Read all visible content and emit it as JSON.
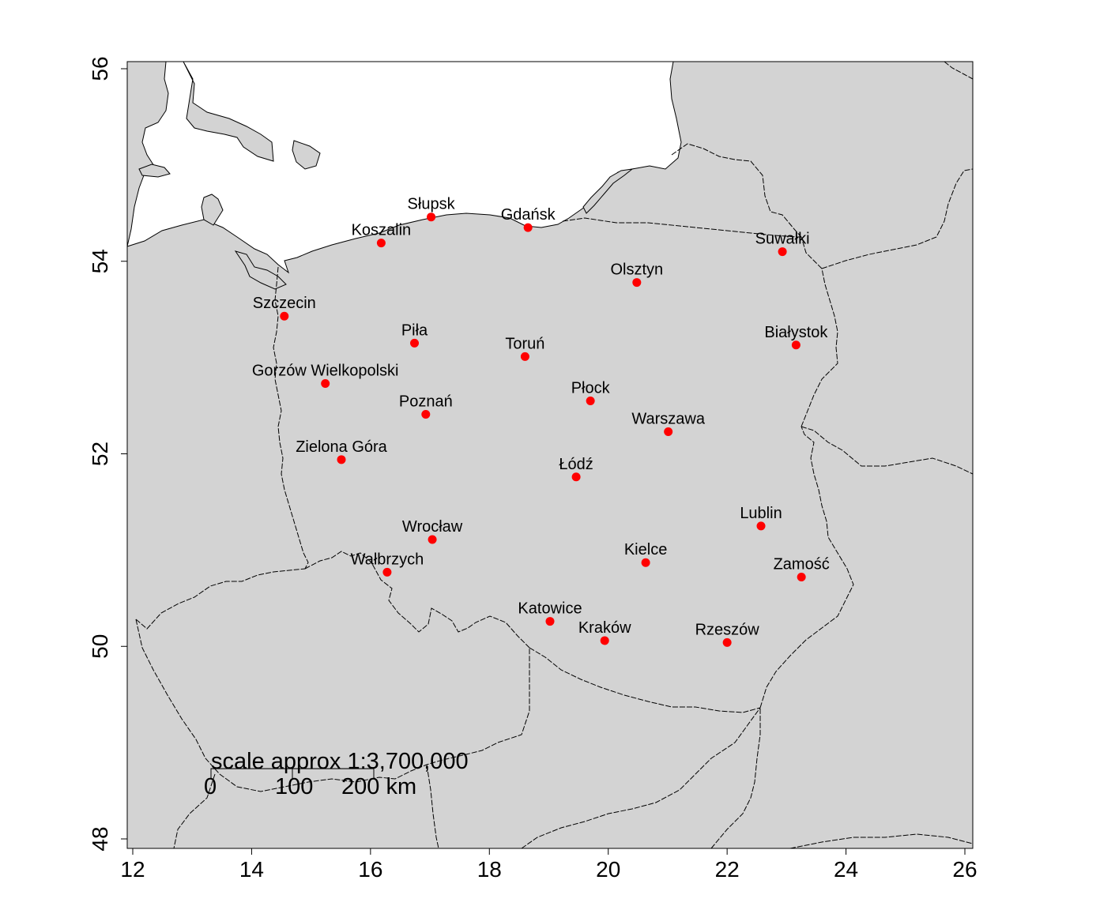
{
  "map": {
    "type": "map",
    "x_axis": {
      "range": [
        12,
        26
      ],
      "ticks": [
        "12",
        "14",
        "16",
        "18",
        "20",
        "22",
        "24",
        "26"
      ],
      "tick_values": [
        12,
        14,
        16,
        18,
        20,
        22,
        24,
        26
      ]
    },
    "y_axis": {
      "range": [
        48,
        56
      ],
      "ticks": [
        "48",
        "50",
        "52",
        "54",
        "56"
      ],
      "tick_values": [
        48,
        50,
        52,
        54,
        56
      ]
    },
    "land_color": "#d3d3d3",
    "sea_color": "#ffffff",
    "point_color": "#ff0000",
    "cities": [
      {
        "name": "Słupsk",
        "lon": 17.02,
        "lat": 54.46
      },
      {
        "name": "Gdańsk",
        "lon": 18.65,
        "lat": 54.35
      },
      {
        "name": "Koszalin",
        "lon": 16.18,
        "lat": 54.19
      },
      {
        "name": "Suwałki",
        "lon": 22.93,
        "lat": 54.1
      },
      {
        "name": "Olsztyn",
        "lon": 20.48,
        "lat": 53.78
      },
      {
        "name": "Szczecin",
        "lon": 14.55,
        "lat": 53.43
      },
      {
        "name": "Piła",
        "lon": 16.74,
        "lat": 53.15
      },
      {
        "name": "Białystok",
        "lon": 23.16,
        "lat": 53.13
      },
      {
        "name": "Toruń",
        "lon": 18.6,
        "lat": 53.01
      },
      {
        "name": "Gorzów Wielkopolski",
        "lon": 15.24,
        "lat": 52.73
      },
      {
        "name": "Płock",
        "lon": 19.7,
        "lat": 52.55
      },
      {
        "name": "Poznań",
        "lon": 16.93,
        "lat": 52.41
      },
      {
        "name": "Warszawa",
        "lon": 21.01,
        "lat": 52.23
      },
      {
        "name": "Zielona Góra",
        "lon": 15.51,
        "lat": 51.94
      },
      {
        "name": "Łódź",
        "lon": 19.46,
        "lat": 51.76
      },
      {
        "name": "Lublin",
        "lon": 22.57,
        "lat": 51.25
      },
      {
        "name": "Wrocław",
        "lon": 17.04,
        "lat": 51.11
      },
      {
        "name": "Kielce",
        "lon": 20.63,
        "lat": 50.87
      },
      {
        "name": "Wałbrzych",
        "lon": 16.28,
        "lat": 50.77
      },
      {
        "name": "Zamość",
        "lon": 23.25,
        "lat": 50.72
      },
      {
        "name": "Katowice",
        "lon": 19.02,
        "lat": 50.26
      },
      {
        "name": "Kraków",
        "lon": 19.94,
        "lat": 50.06
      },
      {
        "name": "Rzeszów",
        "lon": 22.0,
        "lat": 50.04
      }
    ],
    "scale_bar": {
      "title": "scale approx 1:3,700,000",
      "labels": [
        "0",
        "100",
        "200 km"
      ]
    }
  }
}
